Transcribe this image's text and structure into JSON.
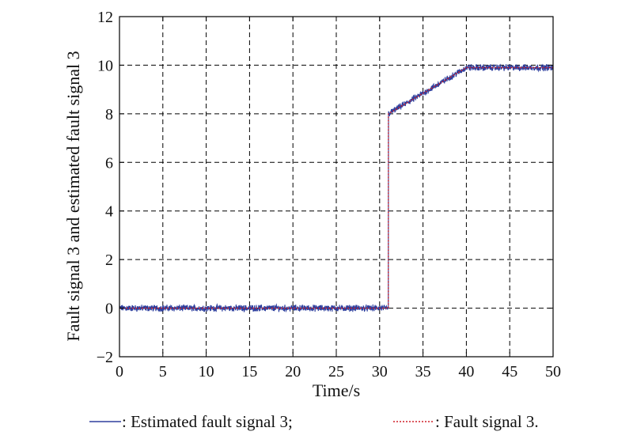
{
  "chart_data": {
    "type": "line",
    "xlabel": "Time/s",
    "ylabel": "Fault signal 3 and estimated fault signal 3",
    "xlim": [
      0,
      50
    ],
    "ylim": [
      -2,
      12
    ],
    "x_ticks": [
      "0",
      "5",
      "10",
      "15",
      "20",
      "25",
      "30",
      "35",
      "40",
      "45",
      "50"
    ],
    "y_ticks": [
      "−2",
      "0",
      "2",
      "4",
      "6",
      "8",
      "10",
      "12"
    ],
    "grid": true,
    "legend_placement": "bottom",
    "series": [
      {
        "name": ": Estimated fault signal 3;",
        "style": "solid",
        "color": "#2e3f9e",
        "x": [
          0,
          31,
          31.01,
          40,
          50
        ],
        "y": [
          0,
          0,
          8,
          9.9,
          9.9
        ],
        "noise_amplitude": 0.1
      },
      {
        "name": ": Fault signal 3.",
        "style": "dotted",
        "color": "#d0202a",
        "x": [
          0,
          31,
          31.01,
          40,
          50
        ],
        "y": [
          0,
          0,
          8,
          9.9,
          9.9
        ]
      }
    ]
  }
}
